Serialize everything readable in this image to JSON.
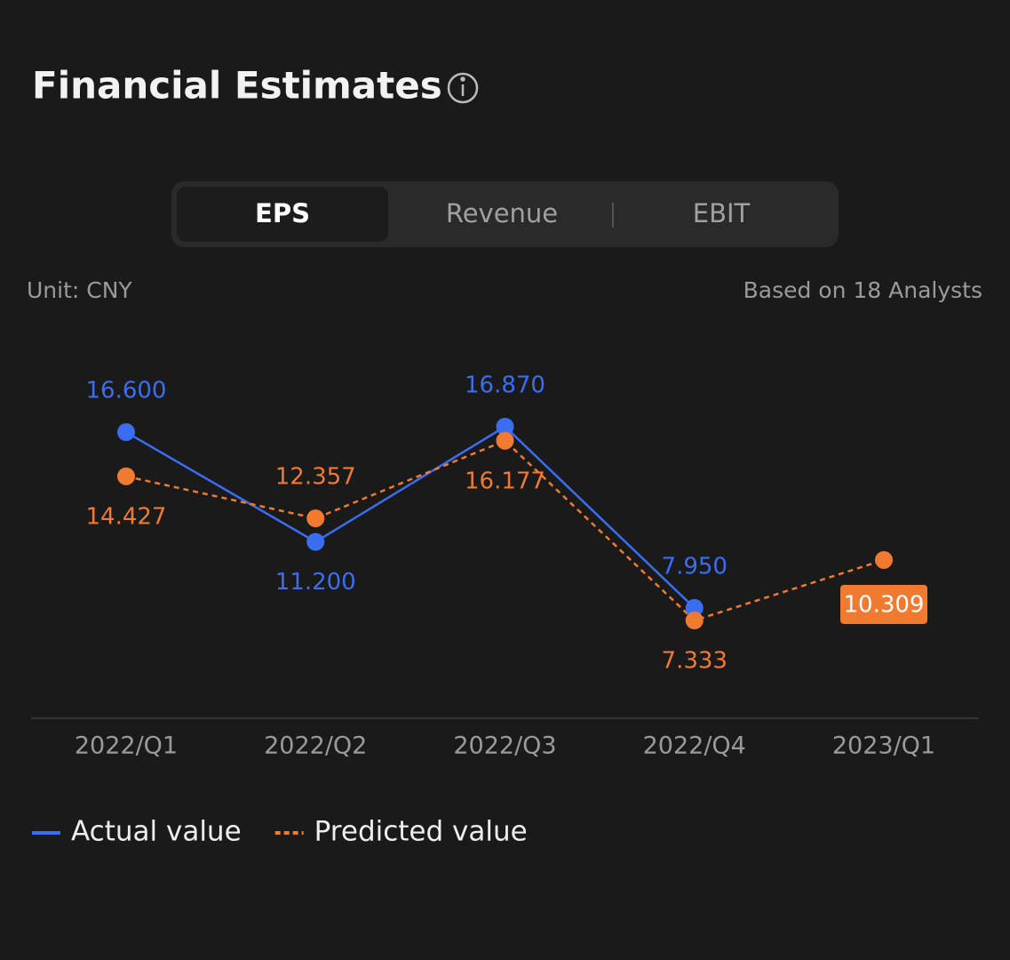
{
  "header": {
    "title": "Financial Estimates"
  },
  "tabs": {
    "items": [
      "EPS",
      "Revenue",
      "EBIT"
    ],
    "selected": 0
  },
  "unit": "Unit: CNY",
  "analysts": "Based on 18 Analysts",
  "chart_data": {
    "type": "line",
    "categories": [
      "2022/Q1",
      "2022/Q2",
      "2022/Q3",
      "2022/Q4",
      "2023/Q1"
    ],
    "series": [
      {
        "name": "Actual value",
        "color": "#3a6df0",
        "values": [
          16.6,
          11.2,
          16.87,
          7.95,
          null
        ],
        "value_labels": [
          "16.600",
          "11.200",
          "16.870",
          "7.950",
          null
        ]
      },
      {
        "name": "Predicted value",
        "color": "#f07a30",
        "dashed": true,
        "values": [
          14.427,
          12.357,
          16.177,
          7.333,
          10.309
        ]
      }
    ]
  }
}
